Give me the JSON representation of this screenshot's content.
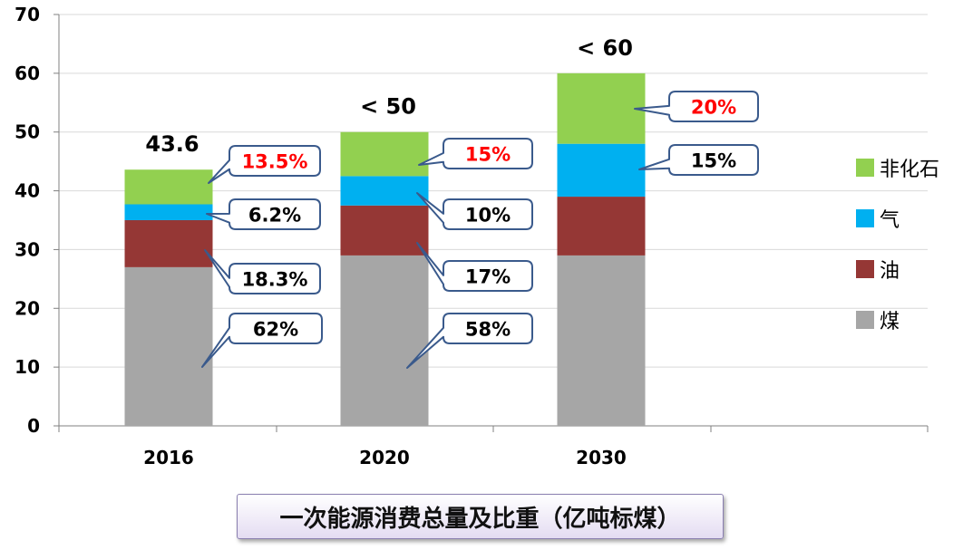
{
  "chart_data": {
    "type": "bar",
    "stacked": true,
    "categories": [
      "2016",
      "2020",
      "2030"
    ],
    "ylim": [
      0,
      70
    ],
    "yticks": [
      0,
      10,
      20,
      30,
      40,
      50,
      60,
      70
    ],
    "grid": true,
    "legend_position": "right",
    "title": "一次能源消费总量及比重（亿吨标煤）",
    "totals": [
      "43.6",
      "< 50",
      "< 60"
    ],
    "series": [
      {
        "name": "煤",
        "color": "#a6a6a6",
        "values": [
          27.0,
          29.0,
          29.0
        ],
        "labels": [
          "62%",
          "58%",
          ""
        ],
        "label_color": "#000000"
      },
      {
        "name": "油",
        "color": "#953735",
        "values": [
          8.0,
          8.5,
          10.0
        ],
        "labels": [
          "18.3%",
          "17%",
          ""
        ],
        "label_color": "#000000"
      },
      {
        "name": "气",
        "color": "#00b0f0",
        "values": [
          2.7,
          5.0,
          9.0
        ],
        "labels": [
          "6.2%",
          "10%",
          "15%"
        ],
        "label_color": "#000000"
      },
      {
        "name": "非化石",
        "color": "#92d050",
        "values": [
          5.9,
          7.5,
          12.0
        ],
        "labels": [
          "13.5%",
          "15%",
          "20%"
        ],
        "label_color": "#ff0000"
      }
    ]
  }
}
